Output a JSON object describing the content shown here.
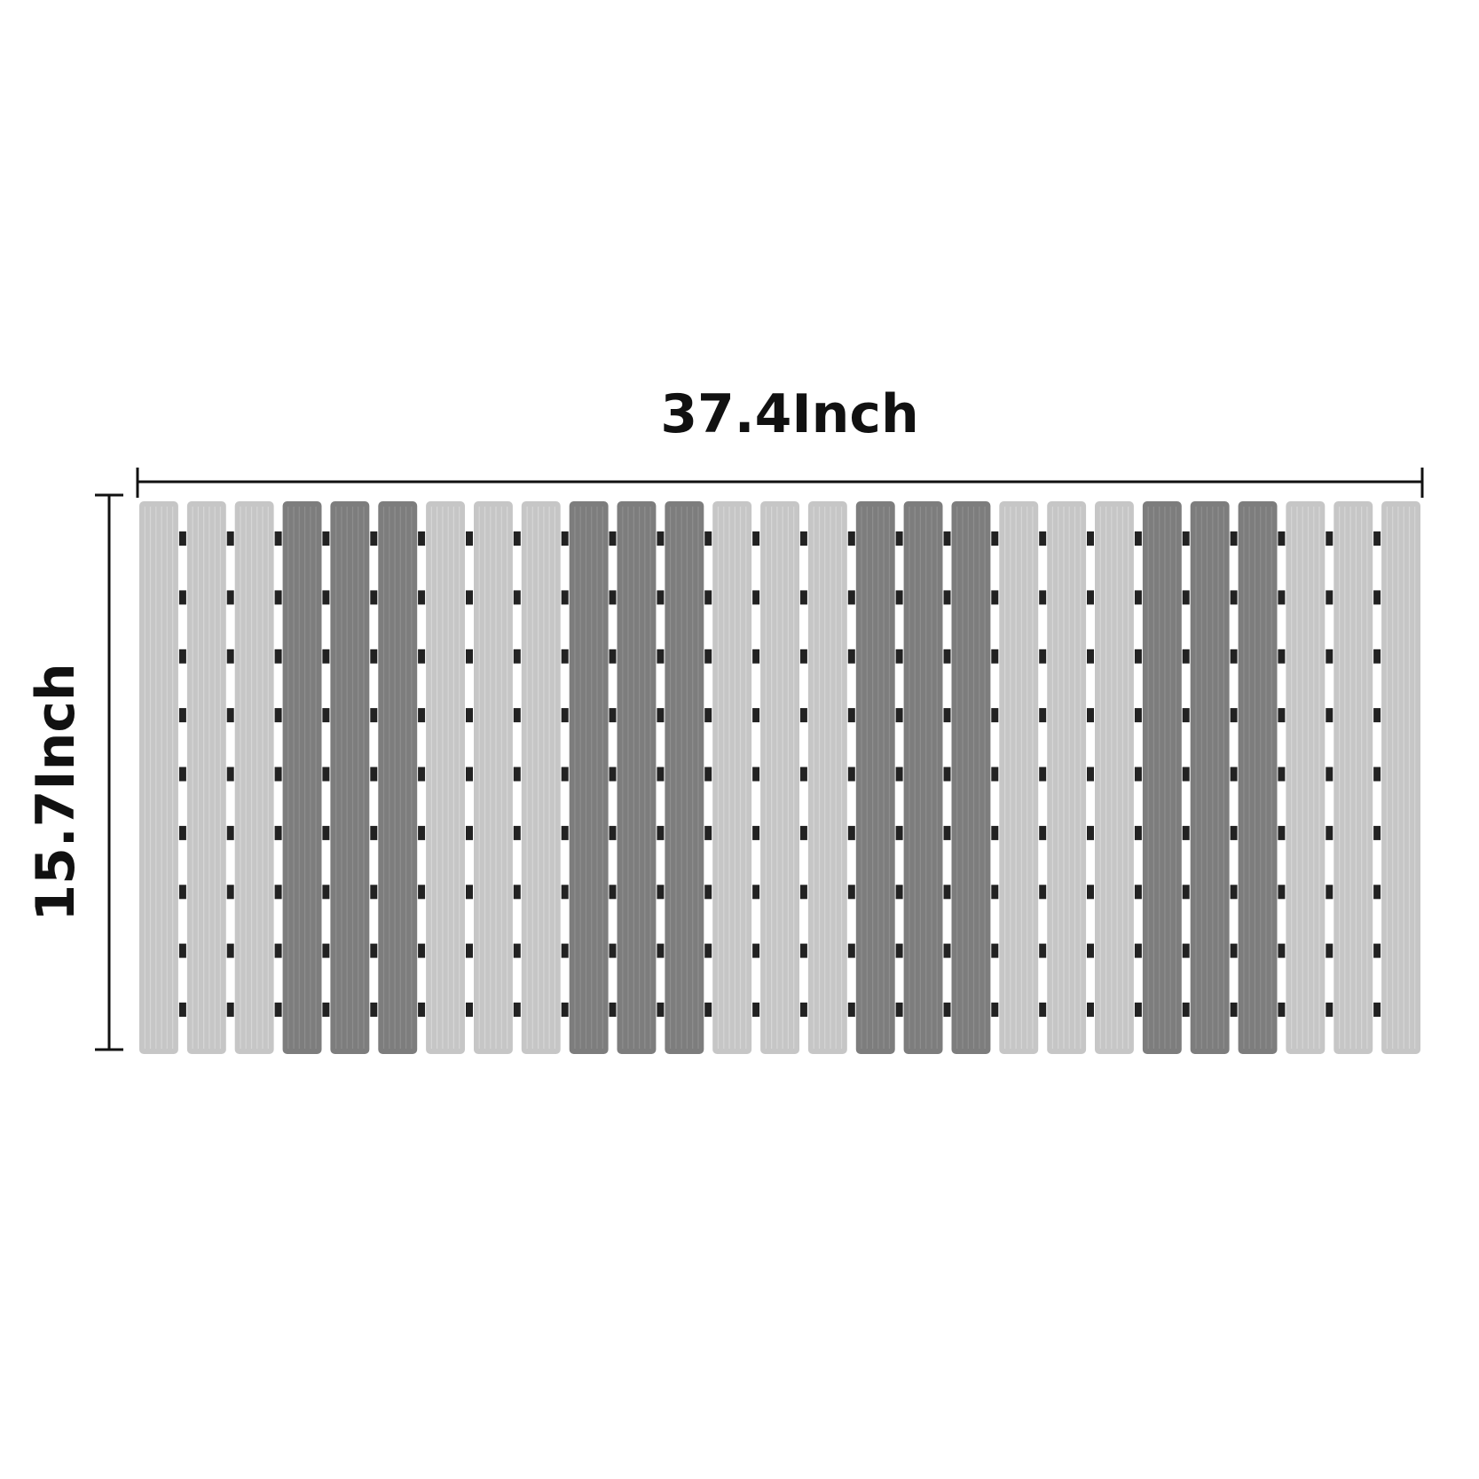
{
  "dimensions": {
    "width_label": "37.4Inch",
    "height_label": "15.7Inch"
  },
  "mat": {
    "slat_count": 27,
    "slat_pattern": [
      "light",
      "light",
      "light",
      "dark",
      "dark",
      "dark",
      "light",
      "light",
      "light",
      "dark",
      "dark",
      "dark",
      "light",
      "light",
      "light",
      "dark",
      "dark",
      "dark",
      "light",
      "light",
      "light",
      "dark",
      "dark",
      "dark",
      "light",
      "light",
      "light"
    ],
    "connector_rows": 9,
    "colors": {
      "light": "#c6c6c6",
      "light_ridge": "#d6d6d6",
      "dark": "#7d7d7d",
      "dark_ridge": "#8e8e8e",
      "connector": "#222222",
      "line": "#111111",
      "background": "#ffffff"
    }
  }
}
